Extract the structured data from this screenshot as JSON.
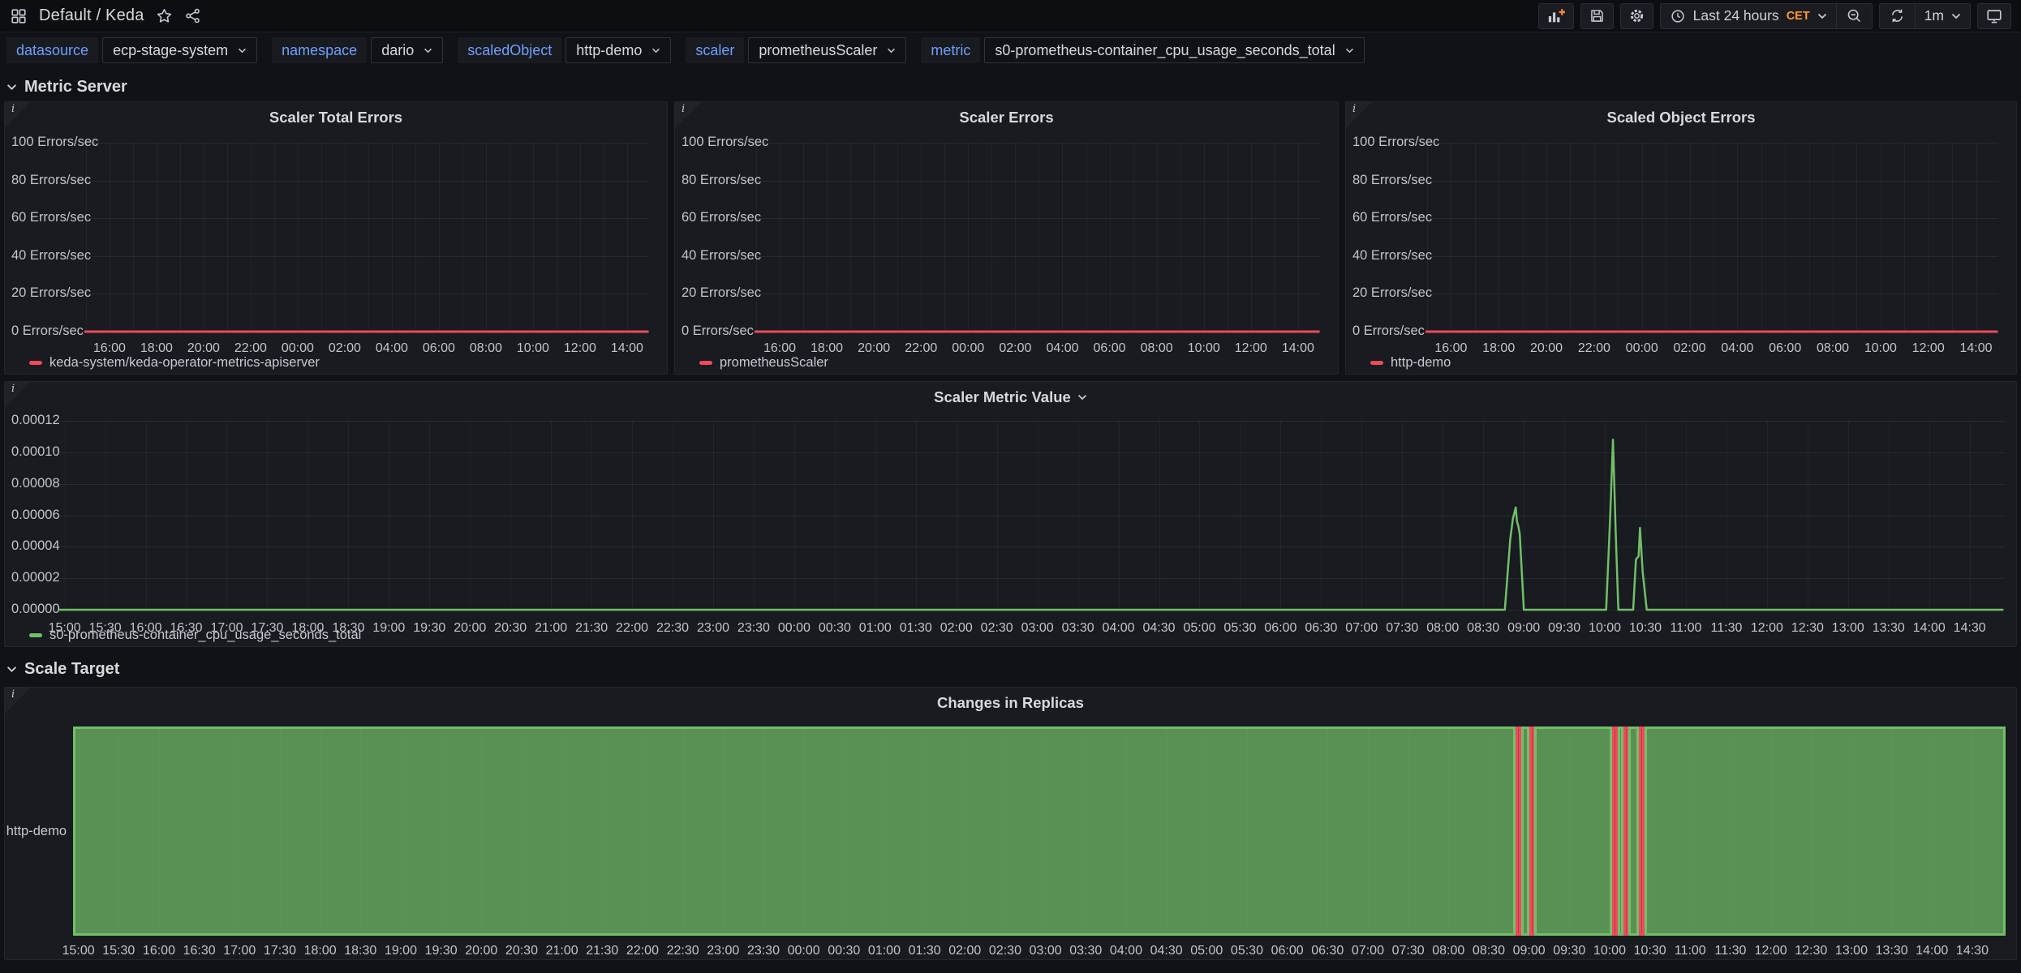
{
  "nav": {
    "breadcrumb": "Default / Keda",
    "time_range_label": "Last 24 hours",
    "timezone": "CET",
    "refresh_interval": "1m"
  },
  "variables": [
    {
      "label": "datasource",
      "value": "ecp-stage-system"
    },
    {
      "label": "namespace",
      "value": "dario"
    },
    {
      "label": "scaledObject",
      "value": "http-demo"
    },
    {
      "label": "scaler",
      "value": "prometheusScaler"
    },
    {
      "label": "metric",
      "value": "s0-prometheus-container_cpu_usage_seconds_total"
    }
  ],
  "rows": [
    {
      "title": "Metric Server"
    },
    {
      "title": "Scale Target"
    }
  ],
  "colors": {
    "red": "#F2495C",
    "green": "#73BF69",
    "blue_label": "#6E9FFF",
    "orange": "#FF9830"
  },
  "chart_data": [
    {
      "id": "scaler-total-errors",
      "type": "line",
      "title": "Scaler Total Errors",
      "ylim": [
        0,
        100
      ],
      "y_ticks": [
        {
          "v": 100,
          "label": "100 Errors/sec"
        },
        {
          "v": 80,
          "label": "80 Errors/sec"
        },
        {
          "v": 60,
          "label": "60 Errors/sec"
        },
        {
          "v": 40,
          "label": "40 Errors/sec"
        },
        {
          "v": 20,
          "label": "20 Errors/sec"
        },
        {
          "v": 0,
          "label": "0 Errors/sec"
        }
      ],
      "x_ticks": [
        "16:00",
        "18:00",
        "20:00",
        "22:00",
        "00:00",
        "02:00",
        "04:00",
        "06:00",
        "08:00",
        "10:00",
        "12:00",
        "14:00"
      ],
      "series": [
        {
          "name": "keda-system/keda-operator-metrics-apiserver",
          "color": "#F2495C",
          "points": [
            [
              "14:56",
              0
            ],
            [
              "14:55",
              0
            ]
          ]
        }
      ]
    },
    {
      "id": "scaler-errors",
      "type": "line",
      "title": "Scaler Errors",
      "ylim": [
        0,
        100
      ],
      "y_ticks": [
        {
          "v": 100,
          "label": "100 Errors/sec"
        },
        {
          "v": 80,
          "label": "80 Errors/sec"
        },
        {
          "v": 60,
          "label": "60 Errors/sec"
        },
        {
          "v": 40,
          "label": "40 Errors/sec"
        },
        {
          "v": 20,
          "label": "20 Errors/sec"
        },
        {
          "v": 0,
          "label": "0 Errors/sec"
        }
      ],
      "x_ticks": [
        "16:00",
        "18:00",
        "20:00",
        "22:00",
        "00:00",
        "02:00",
        "04:00",
        "06:00",
        "08:00",
        "10:00",
        "12:00",
        "14:00"
      ],
      "series": [
        {
          "name": "prometheusScaler",
          "color": "#F2495C",
          "points": [
            [
              "14:56",
              0
            ],
            [
              "14:55",
              0
            ]
          ]
        }
      ]
    },
    {
      "id": "scaled-object-errors",
      "type": "line",
      "title": "Scaled Object Errors",
      "ylim": [
        0,
        100
      ],
      "y_ticks": [
        {
          "v": 100,
          "label": "100 Errors/sec"
        },
        {
          "v": 80,
          "label": "80 Errors/sec"
        },
        {
          "v": 60,
          "label": "60 Errors/sec"
        },
        {
          "v": 40,
          "label": "40 Errors/sec"
        },
        {
          "v": 20,
          "label": "20 Errors/sec"
        },
        {
          "v": 0,
          "label": "0 Errors/sec"
        }
      ],
      "x_ticks": [
        "16:00",
        "18:00",
        "20:00",
        "22:00",
        "00:00",
        "02:00",
        "04:00",
        "06:00",
        "08:00",
        "10:00",
        "12:00",
        "14:00"
      ],
      "series": [
        {
          "name": "http-demo",
          "color": "#F2495C",
          "points": [
            [
              "14:56",
              0
            ],
            [
              "14:55",
              0
            ]
          ]
        }
      ]
    },
    {
      "id": "scaler-metric-value",
      "type": "line",
      "title": "Scaler Metric Value",
      "ylim": [
        0,
        0.00012
      ],
      "y_ticks": [
        {
          "v": 0.00012,
          "label": "0.00012"
        },
        {
          "v": 0.0001,
          "label": "0.00010"
        },
        {
          "v": 8e-05,
          "label": "0.00008"
        },
        {
          "v": 6e-05,
          "label": "0.00006"
        },
        {
          "v": 4e-05,
          "label": "0.00004"
        },
        {
          "v": 2e-05,
          "label": "0.00002"
        },
        {
          "v": 0,
          "label": "0.00000"
        }
      ],
      "x_ticks": [
        "15:00",
        "15:30",
        "16:00",
        "16:30",
        "17:00",
        "17:30",
        "18:00",
        "18:30",
        "19:00",
        "19:30",
        "20:00",
        "20:30",
        "21:00",
        "21:30",
        "22:00",
        "22:30",
        "23:00",
        "23:30",
        "00:00",
        "00:30",
        "01:00",
        "01:30",
        "02:00",
        "02:30",
        "03:00",
        "03:30",
        "04:00",
        "04:30",
        "05:00",
        "05:30",
        "06:00",
        "06:30",
        "07:00",
        "07:30",
        "08:00",
        "08:30",
        "09:00",
        "09:30",
        "10:00",
        "10:30",
        "11:00",
        "11:30",
        "12:00",
        "12:30",
        "13:00",
        "13:30",
        "14:00",
        "14:30"
      ],
      "series": [
        {
          "name": "s0-prometheus-container_cpu_usage_seconds_total",
          "color": "#73BF69",
          "points": [
            [
              "14:56",
              0
            ],
            [
              "08:46",
              0
            ],
            [
              "08:50",
              4.5e-05
            ],
            [
              "08:52",
              5.8e-05
            ],
            [
              "08:54",
              6.5e-05
            ],
            [
              "08:55",
              5.6e-05
            ],
            [
              "08:56",
              5.3e-05
            ],
            [
              "08:57",
              4.8e-05
            ],
            [
              "09:00",
              0
            ],
            [
              "10:01",
              0
            ],
            [
              "10:04",
              6e-05
            ],
            [
              "10:06",
              0.000108
            ],
            [
              "10:08",
              5e-05
            ],
            [
              "10:10",
              0
            ],
            [
              "10:21",
              0
            ],
            [
              "10:23",
              3.2e-05
            ],
            [
              "10:25",
              3.4e-05
            ],
            [
              "10:26",
              5.2e-05
            ],
            [
              "10:28",
              2.4e-05
            ],
            [
              "10:31",
              0
            ],
            [
              "14:55",
              0
            ]
          ]
        }
      ]
    },
    {
      "id": "changes-in-replicas",
      "type": "state-timeline",
      "title": "Changes in Replicas",
      "category": "http-demo",
      "x_ticks": [
        "15:00",
        "15:30",
        "16:00",
        "16:30",
        "17:00",
        "17:30",
        "18:00",
        "18:30",
        "19:00",
        "19:30",
        "20:00",
        "20:30",
        "21:00",
        "21:30",
        "22:00",
        "22:30",
        "23:00",
        "23:30",
        "00:00",
        "00:30",
        "01:00",
        "01:30",
        "02:00",
        "02:30",
        "03:00",
        "03:30",
        "04:00",
        "04:30",
        "05:00",
        "05:30",
        "06:00",
        "06:30",
        "07:00",
        "07:30",
        "08:00",
        "08:30",
        "09:00",
        "09:30",
        "10:00",
        "10:30",
        "11:00",
        "11:30",
        "12:00",
        "12:30",
        "13:00",
        "13:30",
        "14:00",
        "14:30"
      ],
      "states": {
        "ok": "#73BF69",
        "alert": "#F2495C"
      },
      "segments": [
        {
          "from": "14:56",
          "to": "08:50",
          "state": "ok"
        },
        {
          "from": "08:50",
          "to": "08:54",
          "state": "alert"
        },
        {
          "from": "08:54",
          "to": "09:00",
          "state": "ok"
        },
        {
          "from": "09:00",
          "to": "09:04",
          "state": "alert"
        },
        {
          "from": "09:04",
          "to": "10:02",
          "state": "ok"
        },
        {
          "from": "10:02",
          "to": "10:06",
          "state": "alert"
        },
        {
          "from": "10:06",
          "to": "10:10",
          "state": "ok"
        },
        {
          "from": "10:10",
          "to": "10:14",
          "state": "alert"
        },
        {
          "from": "10:14",
          "to": "10:22",
          "state": "ok"
        },
        {
          "from": "10:22",
          "to": "10:26",
          "state": "alert"
        },
        {
          "from": "10:26",
          "to": "14:55",
          "state": "ok"
        }
      ]
    }
  ]
}
